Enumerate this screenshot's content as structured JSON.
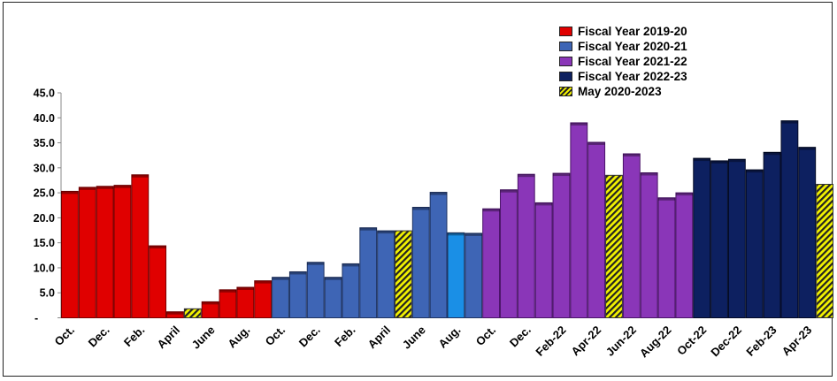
{
  "chart_data": {
    "type": "bar",
    "ylim": [
      0,
      45
    ],
    "yticks": [
      "-",
      "5.0",
      "10.0",
      "15.0",
      "20.0",
      "25.0",
      "30.0",
      "35.0",
      "40.0",
      "45.0"
    ],
    "xtick_labels": [
      "Oct.",
      "Dec.",
      "Feb.",
      "April",
      "June",
      "Aug.",
      "Oct.",
      "Dec.",
      "Feb.",
      "April",
      "June",
      "Aug.",
      "Oct.",
      "Dec.",
      "Feb-22",
      "Apr-22",
      "Jun-22",
      "Aug-22",
      "Oct-22",
      "Dec-22",
      "Feb-23",
      "Apr-23"
    ],
    "values": [
      25.3,
      26.1,
      26.3,
      26.5,
      28.6,
      14.4,
      1.2,
      1.8,
      3.2,
      5.6,
      6.1,
      7.4,
      8.1,
      9.2,
      11.1,
      8.1,
      10.8,
      18.0,
      17.4,
      17.4,
      22.1,
      25.1,
      17.0,
      16.9,
      21.8,
      25.6,
      28.7,
      23.0,
      28.9,
      39.0,
      35.1,
      28.5,
      32.8,
      29.0,
      24.0,
      25.0,
      31.9,
      31.4,
      31.7,
      29.6,
      33.1,
      39.4,
      34.1,
      26.7
    ],
    "series_index": [
      0,
      0,
      0,
      0,
      0,
      0,
      0,
      4,
      0,
      0,
      0,
      0,
      1,
      1,
      1,
      1,
      1,
      1,
      1,
      4,
      1,
      1,
      1,
      1,
      2,
      2,
      2,
      2,
      2,
      2,
      2,
      4,
      2,
      2,
      2,
      2,
      3,
      3,
      3,
      3,
      3,
      3,
      3,
      4
    ],
    "highlight_index": 22,
    "legend_position": "top-right",
    "series": [
      {
        "name": "Fiscal Year 2019-20",
        "color": "#e00000",
        "edge": "#7a0000"
      },
      {
        "name": "Fiscal Year 2020-21",
        "color": "#3e65b5",
        "edge": "#1f3463"
      },
      {
        "name": "Fiscal Year 2021-22",
        "color": "#8a36b8",
        "edge": "#4a1468"
      },
      {
        "name": "Fiscal Year 2022-23",
        "color": "#0d2060",
        "edge": "#030a25"
      },
      {
        "name": "May 2020-2023",
        "color": "#f2f200",
        "edge": "#333333",
        "pattern": "hatched"
      }
    ],
    "highlight_color": "#1a8fe6"
  }
}
